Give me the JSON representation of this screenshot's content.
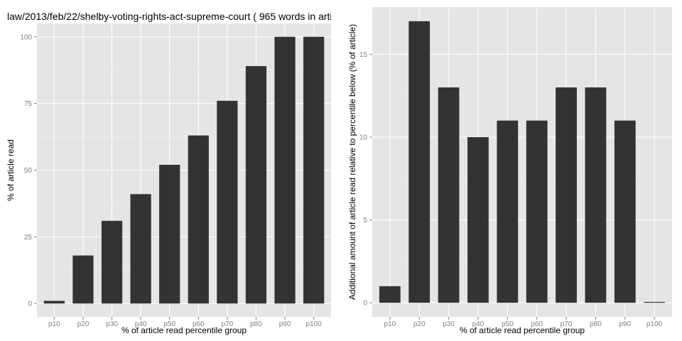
{
  "chart_data": [
    {
      "type": "bar",
      "title": "law/2013/feb/22/shelby-voting-rights-act-supreme-court ( 965 words in arti",
      "xlabel": "% of article read percentile group",
      "ylabel": "% of article read",
      "categories": [
        "p10",
        "p20",
        "p30",
        "p40",
        "p50",
        "p60",
        "p70",
        "p80",
        "p90",
        "p100"
      ],
      "values": [
        1,
        18,
        31,
        41,
        52,
        63,
        76,
        89,
        100,
        100
      ],
      "ylim": [
        -5,
        105
      ],
      "yticks": [
        0,
        25,
        50,
        75,
        100
      ],
      "grid": true
    },
    {
      "type": "bar",
      "title": "",
      "xlabel": "% of article read percentile group",
      "ylabel": "Additional amount of article read relative to percentile below (% of article)",
      "categories": [
        "p10",
        "p20",
        "p30",
        "p40",
        "p50",
        "p60",
        "p70",
        "p80",
        "p90",
        "p100"
      ],
      "values": [
        1,
        17,
        13,
        10,
        11,
        11,
        13,
        13,
        11,
        0
      ],
      "ylim": [
        -0.85,
        17.85
      ],
      "yticks": [
        0,
        5,
        10,
        15
      ],
      "grid": true
    }
  ]
}
